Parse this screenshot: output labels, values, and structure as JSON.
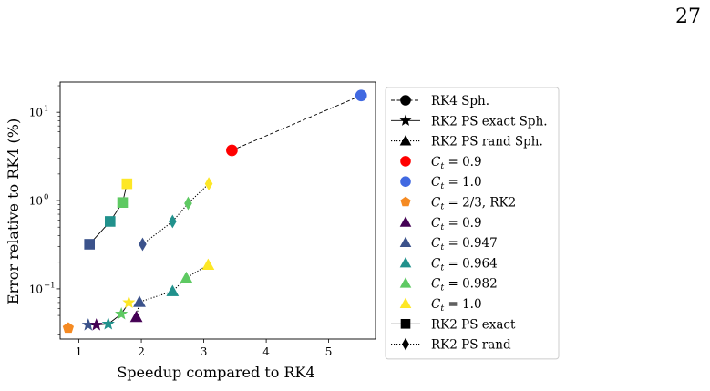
{
  "page": {
    "number": "27"
  },
  "chart_data": {
    "type": "scatter",
    "xlabel": "Speedup compared to RK4",
    "ylabel": "Error relative to RK4 (%)",
    "y_scale": "log",
    "xlim": [
      0.7,
      5.75
    ],
    "ylim": [
      0.027,
      22
    ],
    "x_ticks": [
      1,
      2,
      3,
      4,
      5
    ],
    "x_tick_labels": [
      "1",
      "2",
      "3",
      "4",
      "5"
    ],
    "y_ticks": [
      0.1,
      1,
      10
    ],
    "y_tick_labels": [
      "10",
      "10",
      "10"
    ],
    "y_tick_exponents": [
      "−1",
      "0",
      "1"
    ],
    "legend_placement": "outside-right",
    "colors": {
      "red": "#ff0000",
      "royalblue": "#4169e1",
      "orange": "#f58a22",
      "c09": "#440154",
      "c0947": "#3b528b",
      "c0964": "#21918c",
      "c0982": "#5ec962",
      "c10": "#fde725",
      "black": "#000000"
    },
    "series": [
      {
        "id": "rk4",
        "linestyle": "dashed",
        "color": "#000000",
        "points": [
          {
            "x": 3.45,
            "y": 3.7,
            "marker": "circle",
            "color": "#ff0000"
          },
          {
            "x": 5.52,
            "y": 15.5,
            "marker": "circle",
            "color": "#4169e1"
          }
        ]
      },
      {
        "id": "orange",
        "linestyle": "none",
        "points": [
          {
            "x": 0.83,
            "y": 0.036,
            "marker": "pentagon",
            "color": "#f58a22"
          }
        ]
      },
      {
        "id": "ps-exact-sph",
        "linestyle": "solid",
        "color": "#000000",
        "points": [
          {
            "x": 1.15,
            "y": 0.039,
            "marker": "star",
            "color": "#3b528b"
          },
          {
            "x": 1.28,
            "y": 0.039,
            "marker": "star",
            "color": "#440154"
          },
          {
            "x": 1.47,
            "y": 0.04,
            "marker": "star",
            "color": "#21918c"
          },
          {
            "x": 1.68,
            "y": 0.052,
            "marker": "star",
            "color": "#5ec962"
          },
          {
            "x": 1.8,
            "y": 0.07,
            "marker": "star",
            "color": "#fde725"
          }
        ]
      },
      {
        "id": "ps-rand-sph",
        "linestyle": "dotted",
        "color": "#000000",
        "points": [
          {
            "x": 1.92,
            "y": 0.048,
            "marker": "triangle",
            "color": "#440154"
          },
          {
            "x": 1.97,
            "y": 0.071,
            "marker": "triangle",
            "color": "#3b528b"
          },
          {
            "x": 2.5,
            "y": 0.094,
            "marker": "triangle",
            "color": "#21918c"
          },
          {
            "x": 2.72,
            "y": 0.133,
            "marker": "triangle",
            "color": "#5ec962"
          },
          {
            "x": 3.07,
            "y": 0.187,
            "marker": "triangle",
            "color": "#fde725"
          }
        ]
      },
      {
        "id": "ps-exact",
        "linestyle": "solid",
        "color": "#000000",
        "points": [
          {
            "x": 1.17,
            "y": 0.32,
            "marker": "square",
            "color": "#3b528b"
          },
          {
            "x": 1.5,
            "y": 0.58,
            "marker": "square",
            "color": "#21918c"
          },
          {
            "x": 1.7,
            "y": 0.95,
            "marker": "square",
            "color": "#5ec962"
          },
          {
            "x": 1.77,
            "y": 1.55,
            "marker": "square",
            "color": "#fde725"
          }
        ]
      },
      {
        "id": "ps-rand",
        "linestyle": "dotted",
        "color": "#000000",
        "points": [
          {
            "x": 2.02,
            "y": 0.32,
            "marker": "diamond",
            "color": "#3b528b"
          },
          {
            "x": 2.5,
            "y": 0.58,
            "marker": "diamond",
            "color": "#21918c"
          },
          {
            "x": 2.75,
            "y": 0.93,
            "marker": "diamond",
            "color": "#5ec962"
          },
          {
            "x": 3.08,
            "y": 1.55,
            "marker": "diamond",
            "color": "#fde725"
          }
        ]
      }
    ],
    "legend": [
      {
        "label": "RK4 Sph.",
        "line": "dashed",
        "marker": "circle",
        "color": "#000000"
      },
      {
        "label": "RK2 PS exact Sph.",
        "line": "solid",
        "marker": "star",
        "color": "#000000"
      },
      {
        "label": "RK2 PS rand Sph.",
        "line": "dotted",
        "marker": "triangle",
        "color": "#000000"
      },
      {
        "label": "= 0.9",
        "math": "C",
        "line": "none",
        "marker": "circle",
        "color": "#ff0000"
      },
      {
        "label": "= 1.0",
        "math": "C",
        "line": "none",
        "marker": "circle",
        "color": "#4169e1"
      },
      {
        "label": "= 2/3, RK2",
        "math": "C",
        "line": "none",
        "marker": "pentagon",
        "color": "#f58a22"
      },
      {
        "label": "= 0.9",
        "math": "C",
        "line": "none",
        "marker": "triangle",
        "color": "#440154"
      },
      {
        "label": "= 0.947",
        "math": "C",
        "line": "none",
        "marker": "triangle",
        "color": "#3b528b"
      },
      {
        "label": "= 0.964",
        "math": "C",
        "line": "none",
        "marker": "triangle",
        "color": "#21918c"
      },
      {
        "label": "= 0.982",
        "math": "C",
        "line": "none",
        "marker": "triangle",
        "color": "#5ec962"
      },
      {
        "label": "= 1.0",
        "math": "C",
        "line": "none",
        "marker": "triangle",
        "color": "#fde725"
      },
      {
        "label": "RK2 PS exact",
        "line": "solid",
        "marker": "square",
        "color": "#000000"
      },
      {
        "label": "RK2 PS rand",
        "line": "dotted",
        "marker": "diamond",
        "color": "#000000"
      }
    ],
    "legend_math_subscript": "t"
  }
}
